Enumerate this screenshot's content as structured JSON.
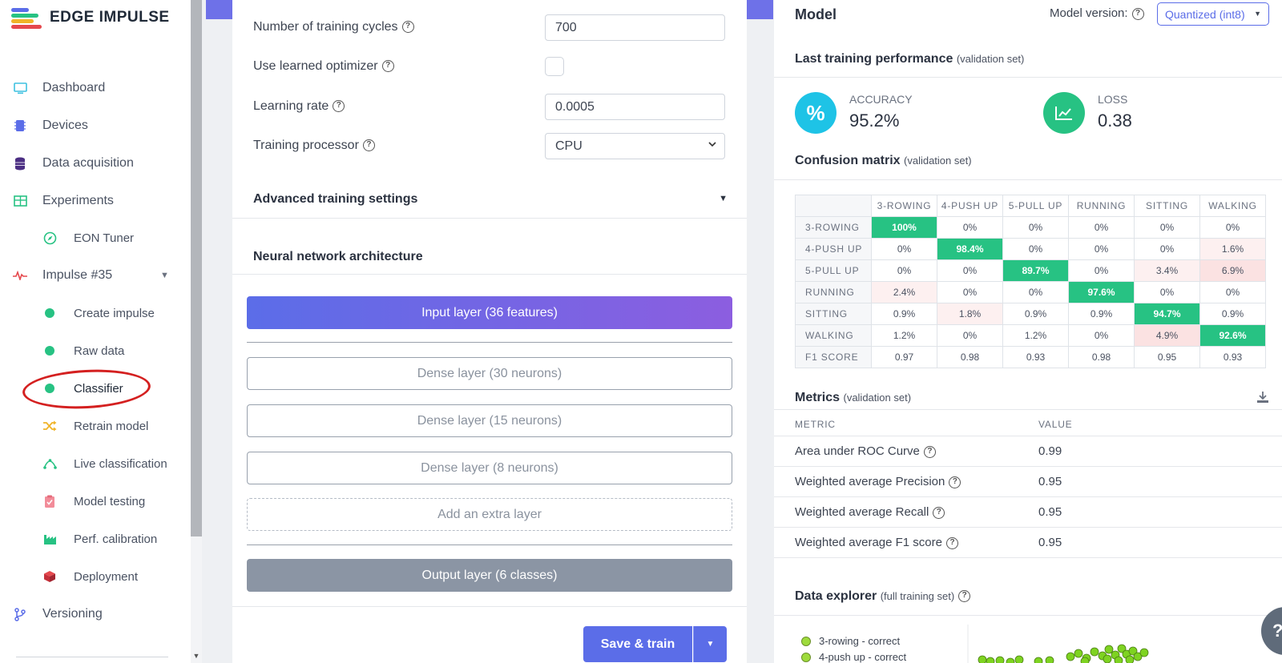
{
  "brand": {
    "name": "EDGE IMPULSE"
  },
  "sidebar": {
    "items": [
      {
        "label": "Dashboard",
        "icon": "monitor-icon"
      },
      {
        "label": "Devices",
        "icon": "chip-icon"
      },
      {
        "label": "Data acquisition",
        "icon": "database-icon"
      },
      {
        "label": "Experiments",
        "icon": "table-icon"
      },
      {
        "label": "EON Tuner",
        "icon": "compass-icon"
      },
      {
        "label": "Impulse #35",
        "icon": "pulse-icon"
      },
      {
        "label": "Create impulse",
        "icon": "dot-icon"
      },
      {
        "label": "Raw data",
        "icon": "dot-icon"
      },
      {
        "label": "Classifier",
        "icon": "dot-icon"
      },
      {
        "label": "Retrain model",
        "icon": "shuffle-icon"
      },
      {
        "label": "Live classification",
        "icon": "graph-icon"
      },
      {
        "label": "Model testing",
        "icon": "clipboard-icon"
      },
      {
        "label": "Perf. calibration",
        "icon": "factory-icon"
      },
      {
        "label": "Deployment",
        "icon": "cube-icon"
      },
      {
        "label": "Versioning",
        "icon": "branch-icon"
      }
    ]
  },
  "training": {
    "cycles_label": "Number of training cycles",
    "cycles_value": "700",
    "optimizer_label": "Use learned optimizer",
    "lr_label": "Learning rate",
    "lr_value": "0.0005",
    "processor_label": "Training processor",
    "processor_value": "CPU",
    "advanced_label": "Advanced training settings"
  },
  "nn": {
    "title": "Neural network architecture",
    "input": "Input layer (36 features)",
    "dense": [
      "Dense layer (30 neurons)",
      "Dense layer (15 neurons)",
      "Dense layer (8 neurons)"
    ],
    "extra": "Add an extra layer",
    "output": "Output layer (6 classes)",
    "save_label": "Save & train"
  },
  "model": {
    "title": "Model",
    "version_label": "Model version:",
    "version_value": "Quantized (int8)",
    "perf_title": "Last training performance",
    "perf_sub": "(validation set)",
    "accuracy_label": "ACCURACY",
    "accuracy_value": "95.2%",
    "loss_label": "LOSS",
    "loss_value": "0.38",
    "cm_title": "Confusion matrix",
    "cm_sub": "(validation set)",
    "cm": {
      "columns": [
        "3-ROWING",
        "4-PUSH UP",
        "5-PULL UP",
        "RUNNING",
        "SITTING",
        "WALKING"
      ],
      "rows": [
        {
          "label": "3-ROWING",
          "cells": [
            "100%",
            "0%",
            "0%",
            "0%",
            "0%",
            "0%"
          ]
        },
        {
          "label": "4-PUSH UP",
          "cells": [
            "0%",
            "98.4%",
            "0%",
            "0%",
            "0%",
            "1.6%"
          ]
        },
        {
          "label": "5-PULL UP",
          "cells": [
            "0%",
            "0%",
            "89.7%",
            "0%",
            "3.4%",
            "6.9%"
          ]
        },
        {
          "label": "RUNNING",
          "cells": [
            "2.4%",
            "0%",
            "0%",
            "97.6%",
            "0%",
            "0%"
          ]
        },
        {
          "label": "SITTING",
          "cells": [
            "0.9%",
            "1.8%",
            "0.9%",
            "0.9%",
            "94.7%",
            "0.9%"
          ]
        },
        {
          "label": "WALKING",
          "cells": [
            "1.2%",
            "0%",
            "1.2%",
            "0%",
            "4.9%",
            "92.6%"
          ]
        },
        {
          "label": "F1 SCORE",
          "cells": [
            "0.97",
            "0.98",
            "0.93",
            "0.98",
            "0.95",
            "0.93"
          ]
        }
      ]
    },
    "metrics_title": "Metrics",
    "metrics_sub": "(validation set)",
    "metrics_col_metric": "METRIC",
    "metrics_col_value": "VALUE",
    "metrics": [
      {
        "name": "Area under ROC Curve",
        "value": "0.99"
      },
      {
        "name": "Weighted average Precision",
        "value": "0.95"
      },
      {
        "name": "Weighted average Recall",
        "value": "0.95"
      },
      {
        "name": "Weighted average F1 score",
        "value": "0.95"
      }
    ],
    "explorer_title": "Data explorer",
    "explorer_sub": "(full training set)",
    "legend": [
      "3-rowing - correct",
      "4-push up - correct"
    ]
  },
  "colors": {
    "accent": "#5b6de8",
    "green": "#27c283",
    "annotation": "#d42020"
  }
}
